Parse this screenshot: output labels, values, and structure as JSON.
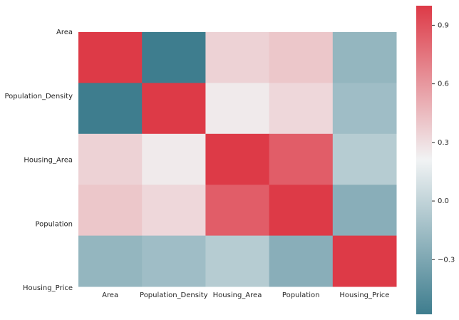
{
  "chart_data": {
    "type": "heatmap",
    "x_categories": [
      "Area",
      "Population_Density",
      "Housing_Area",
      "Population",
      "Housing_Price"
    ],
    "y_categories": [
      "Area",
      "Population_Density",
      "Housing_Area",
      "Population",
      "Housing_Price"
    ],
    "values": [
      [
        1.0,
        -0.58,
        0.35,
        0.4,
        -0.2
      ],
      [
        -0.58,
        1.0,
        0.25,
        0.33,
        -0.15
      ],
      [
        0.35,
        0.25,
        1.0,
        0.85,
        -0.05
      ],
      [
        0.4,
        0.33,
        0.85,
        1.0,
        -0.25
      ],
      [
        -0.2,
        -0.15,
        -0.05,
        -0.25,
        1.0
      ]
    ],
    "colormap": [
      "#3e7d8e",
      "#f1f3f4",
      "#dd3a47"
    ],
    "clim": [
      -0.58,
      1.0
    ],
    "cticks": [
      {
        "value": -0.3,
        "label": "−0.3"
      },
      {
        "value": 0,
        "label": "0.0"
      },
      0.3,
      0.6,
      0.9
    ]
  }
}
